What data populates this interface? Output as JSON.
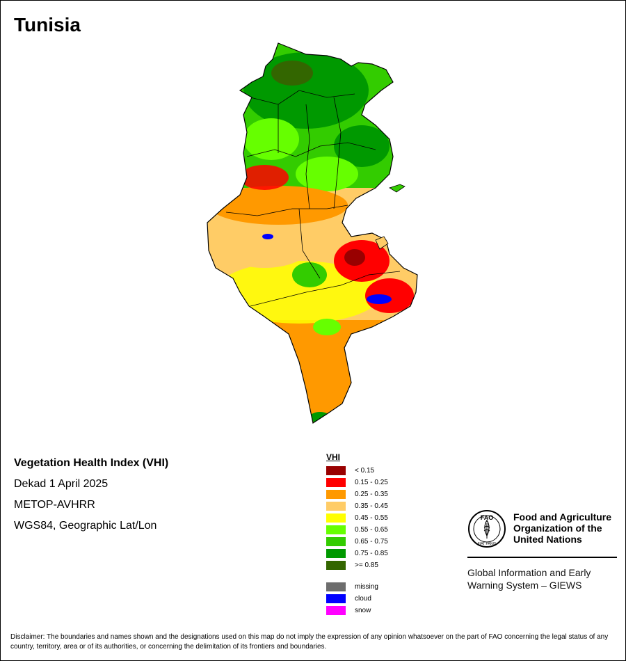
{
  "title": "Tunisia",
  "info": {
    "index_name": "Vegetation Health Index (VHI)",
    "period": "Dekad 1 April 2025",
    "sensor": "METOP-AVHRR",
    "projection": "WGS84, Geographic Lat/Lon"
  },
  "legend": {
    "title": "VHI",
    "classes": [
      {
        "label": "< 0.15",
        "color": "#990000"
      },
      {
        "label": "0.15 - 0.25",
        "color": "#ff0000"
      },
      {
        "label": "0.25 - 0.35",
        "color": "#ff9900"
      },
      {
        "label": "0.35 - 0.45",
        "color": "#ffcc66"
      },
      {
        "label": "0.45 - 0.55",
        "color": "#ffff00"
      },
      {
        "label": "0.55 - 0.65",
        "color": "#66ff00"
      },
      {
        "label": "0.65 - 0.75",
        "color": "#33cc00"
      },
      {
        "label": "0.75 - 0.85",
        "color": "#009900"
      },
      {
        "label": ">= 0.85",
        "color": "#336600"
      }
    ],
    "special": [
      {
        "label": "missing",
        "color": "#6d6d6d"
      },
      {
        "label": "cloud",
        "color": "#0000ff"
      },
      {
        "label": "snow",
        "color": "#ff00ff"
      }
    ]
  },
  "organization": {
    "name_line1": "Food and Agriculture",
    "name_line2": "Organization of the",
    "name_line3": "United Nations",
    "logo_text": "FAO",
    "logo_motto": "FIAT PANIS",
    "system_line1": "Global Information and Early",
    "system_line2": "Warning System – GIEWS"
  },
  "disclaimer": "Disclaimer: The boundaries and names shown and the designations used on this map do not imply the expression of any opinion whatsoever on the part of FAO concerning the legal status of any country, territory, area or of its authorities, or concerning the delimitation of its frontiers and boundaries."
}
